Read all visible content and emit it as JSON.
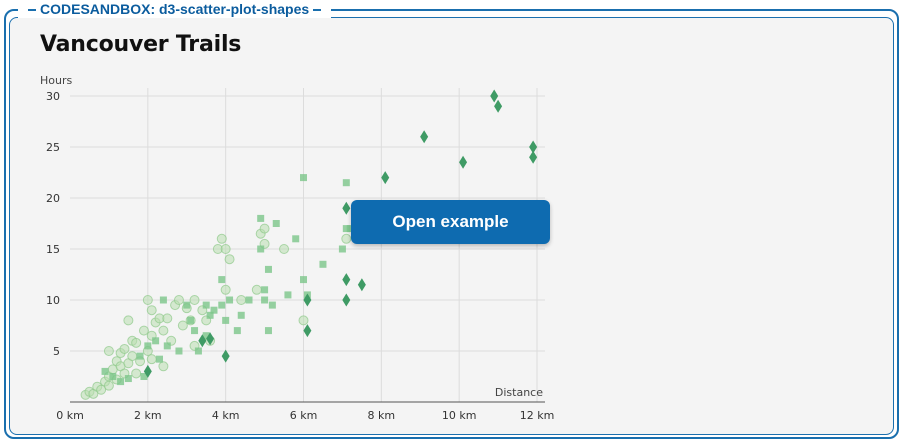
{
  "sandbox": {
    "label": "CODESANDBOX: d3-scatter-plot-shapes"
  },
  "overlay": {
    "button_label": "Open example"
  },
  "chart_data": {
    "type": "scatter",
    "title": "Vancouver Trails",
    "xlabel": "Distance",
    "ylabel": "Hours",
    "x_ticks": [
      "0 km",
      "2 km",
      "4 km",
      "6 km",
      "8 km",
      "10 km",
      "12 km"
    ],
    "y_ticks": [
      "5",
      "10",
      "15",
      "20",
      "25",
      "30"
    ],
    "xlim": [
      0,
      12
    ],
    "ylim": [
      0,
      30
    ],
    "grid": true,
    "series": [
      {
        "shape": "circle",
        "color": "#b9dfb0",
        "points": [
          [
            0.4,
            0.7
          ],
          [
            0.5,
            1.0
          ],
          [
            0.6,
            0.8
          ],
          [
            0.7,
            1.5
          ],
          [
            0.8,
            1.2
          ],
          [
            0.9,
            2.0
          ],
          [
            1.0,
            1.6
          ],
          [
            1.0,
            2.5
          ],
          [
            1.1,
            3.2
          ],
          [
            1.2,
            2.2
          ],
          [
            1.2,
            4.0
          ],
          [
            1.3,
            3.5
          ],
          [
            1.3,
            4.8
          ],
          [
            1.4,
            2.8
          ],
          [
            1.4,
            5.2
          ],
          [
            1.5,
            3.8
          ],
          [
            1.5,
            8.0
          ],
          [
            1.6,
            4.5
          ],
          [
            1.6,
            6.0
          ],
          [
            1.7,
            2.8
          ],
          [
            1.7,
            5.8
          ],
          [
            1.8,
            4.0
          ],
          [
            1.9,
            7.0
          ],
          [
            2.0,
            10.0
          ],
          [
            2.0,
            5.0
          ],
          [
            2.1,
            9.0
          ],
          [
            2.1,
            6.5
          ],
          [
            2.1,
            4.2
          ],
          [
            2.2,
            7.8
          ],
          [
            2.3,
            8.2
          ],
          [
            2.4,
            3.5
          ],
          [
            2.5,
            8.2
          ],
          [
            2.6,
            6.0
          ],
          [
            2.7,
            9.5
          ],
          [
            2.8,
            10.0
          ],
          [
            2.9,
            7.5
          ],
          [
            3.0,
            9.2
          ],
          [
            3.1,
            8.0
          ],
          [
            3.2,
            5.5
          ],
          [
            3.4,
            9.0
          ],
          [
            3.6,
            6.0
          ],
          [
            3.8,
            15.0
          ],
          [
            3.9,
            16.0
          ],
          [
            4.0,
            15.0
          ],
          [
            4.0,
            11.0
          ],
          [
            4.1,
            14.0
          ],
          [
            4.4,
            10.0
          ],
          [
            4.8,
            11.0
          ],
          [
            4.9,
            16.5
          ],
          [
            5.0,
            15.5
          ],
          [
            5.0,
            17.0
          ],
          [
            5.5,
            15.0
          ],
          [
            6.0,
            8.0
          ],
          [
            7.1,
            16.0
          ],
          [
            1.0,
            5.0
          ],
          [
            2.4,
            7.0
          ],
          [
            3.2,
            10.0
          ],
          [
            3.5,
            8.0
          ]
        ]
      },
      {
        "shape": "square",
        "color": "#7cc68a",
        "points": [
          [
            0.9,
            3.0
          ],
          [
            1.1,
            2.5
          ],
          [
            1.3,
            2.0
          ],
          [
            1.5,
            2.3
          ],
          [
            1.8,
            4.5
          ],
          [
            1.9,
            2.5
          ],
          [
            2.0,
            5.5
          ],
          [
            2.2,
            6.0
          ],
          [
            2.3,
            4.2
          ],
          [
            2.4,
            10.0
          ],
          [
            2.5,
            5.5
          ],
          [
            2.8,
            5.0
          ],
          [
            3.0,
            9.5
          ],
          [
            3.1,
            8.0
          ],
          [
            3.2,
            7.0
          ],
          [
            3.3,
            5.0
          ],
          [
            3.5,
            9.5
          ],
          [
            3.5,
            6.5
          ],
          [
            3.6,
            8.5
          ],
          [
            3.7,
            9.0
          ],
          [
            3.9,
            12.0
          ],
          [
            3.9,
            9.5
          ],
          [
            4.0,
            8.0
          ],
          [
            4.1,
            10.0
          ],
          [
            4.3,
            7.0
          ],
          [
            4.4,
            8.5
          ],
          [
            4.6,
            10.0
          ],
          [
            4.9,
            15.0
          ],
          [
            4.9,
            18.0
          ],
          [
            5.0,
            11.0
          ],
          [
            5.0,
            10.0
          ],
          [
            5.1,
            7.0
          ],
          [
            5.1,
            13.0
          ],
          [
            5.2,
            9.5
          ],
          [
            5.3,
            17.5
          ],
          [
            5.6,
            10.5
          ],
          [
            5.8,
            16.0
          ],
          [
            6.0,
            22.0
          ],
          [
            6.0,
            12.0
          ],
          [
            6.1,
            10.5
          ],
          [
            6.5,
            13.5
          ],
          [
            7.0,
            15.0
          ],
          [
            7.1,
            21.5
          ],
          [
            7.1,
            17.0
          ],
          [
            7.2,
            17.0
          ]
        ]
      },
      {
        "shape": "diamond",
        "color": "#3f9b65",
        "points": [
          [
            2.0,
            3.0
          ],
          [
            3.4,
            6.0
          ],
          [
            3.6,
            6.2
          ],
          [
            4.0,
            4.5
          ],
          [
            6.1,
            10.0
          ],
          [
            6.1,
            7.0
          ],
          [
            7.1,
            19.0
          ],
          [
            7.1,
            12.0
          ],
          [
            7.1,
            10.0
          ],
          [
            7.5,
            11.5
          ],
          [
            8.1,
            22.0
          ],
          [
            9.1,
            26.0
          ],
          [
            10.1,
            23.5
          ],
          [
            10.9,
            30.0
          ],
          [
            11.0,
            29.0
          ],
          [
            11.9,
            25.0
          ],
          [
            11.9,
            24.0
          ]
        ]
      }
    ]
  }
}
